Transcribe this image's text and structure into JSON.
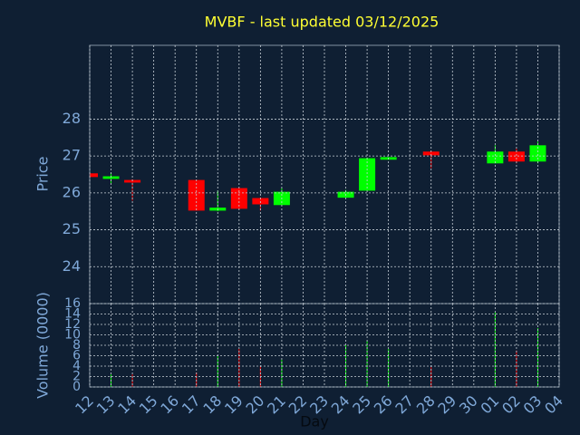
{
  "chart_data": [
    {
      "type": "candlestick",
      "title": "MVBF - last updated 03/12/2025",
      "ylabel": "Price",
      "open": [
        26.53,
        26.38,
        26.35,
        null,
        null,
        26.35,
        25.52,
        26.13,
        25.86,
        25.67,
        null,
        null,
        25.87,
        26.06,
        26.9,
        null,
        27.12,
        null,
        null,
        26.8,
        27.12,
        26.85,
        null
      ],
      "high": [
        26.55,
        26.55,
        26.37,
        null,
        null,
        26.35,
        26.06,
        26.15,
        25.88,
        26.13,
        null,
        null,
        26.08,
        26.96,
        26.97,
        null,
        27.14,
        null,
        null,
        27.29,
        27.2,
        27.39,
        null
      ],
      "low": [
        26.43,
        26.26,
        25.79,
        null,
        null,
        25.52,
        25.5,
        25.55,
        25.52,
        25.67,
        null,
        null,
        25.85,
        26.06,
        26.9,
        null,
        26.67,
        null,
        null,
        26.8,
        26.8,
        26.8,
        null
      ],
      "close": [
        26.43,
        26.45,
        26.28,
        null,
        null,
        25.52,
        25.6,
        25.57,
        25.69,
        26.03,
        null,
        null,
        26.03,
        26.94,
        26.97,
        null,
        27.02,
        null,
        null,
        27.12,
        26.85,
        27.29,
        null
      ],
      "up_color": "#00ff00",
      "down_color": "#ff0000",
      "ylim": [
        23,
        30
      ],
      "yticks": [
        24,
        25,
        26,
        27,
        28
      ],
      "grid": true
    },
    {
      "type": "bar",
      "xlabel": "Day",
      "ylabel": "Volume (0000)",
      "categories": [
        "12",
        "13",
        "14",
        "15",
        "16",
        "17",
        "18",
        "19",
        "20",
        "21",
        "22",
        "23",
        "24",
        "25",
        "26",
        "27",
        "28",
        "29",
        "30",
        "01",
        "02",
        "03",
        "04"
      ],
      "values": [
        null,
        2.4,
        2.4,
        null,
        null,
        2.8,
        5.9,
        7.3,
        4,
        5.2,
        null,
        null,
        8,
        8.9,
        7.3,
        null,
        3.8,
        null,
        null,
        14.3,
        7,
        11.3,
        null
      ],
      "ylim": [
        0,
        16
      ],
      "yticks": [
        0,
        2,
        4,
        6,
        8,
        10,
        12,
        14,
        16
      ],
      "grid": true
    }
  ]
}
